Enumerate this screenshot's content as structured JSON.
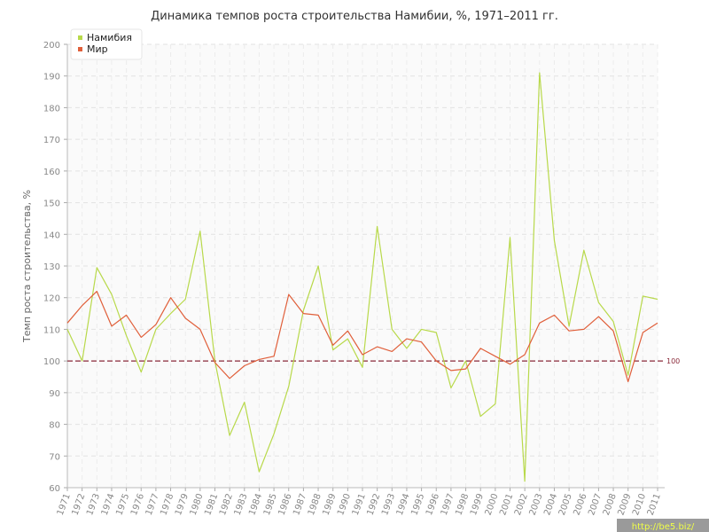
{
  "chart_data": {
    "type": "line",
    "title": "Динамика темпов роста строительства Намибии, %, 1971–2011 гг.",
    "xlabel": "",
    "ylabel": "Темп роста строительства, %",
    "ylim": [
      60,
      200
    ],
    "yticks": [
      60,
      70,
      80,
      90,
      100,
      110,
      120,
      130,
      140,
      150,
      160,
      170,
      180,
      190,
      200
    ],
    "x": [
      "1971",
      "1972",
      "1973",
      "1974",
      "1975",
      "1976",
      "1977",
      "1978",
      "1979",
      "1980",
      "1981",
      "1982",
      "1983",
      "1984",
      "1985",
      "1986",
      "1987",
      "1988",
      "1989",
      "1990",
      "1991",
      "1992",
      "1993",
      "1994",
      "1995",
      "1996",
      "1997",
      "1998",
      "1999",
      "2000",
      "2001",
      "2002",
      "2003",
      "2004",
      "2005",
      "2006",
      "2007",
      "2008",
      "2009",
      "2010",
      "2011"
    ],
    "series": [
      {
        "name": "Намибия",
        "color": "#b8d94a",
        "values": [
          110,
          100,
          129.5,
          121,
          108,
          96.5,
          110,
          115,
          119.5,
          141,
          100,
          76.5,
          87,
          65,
          77,
          92,
          116,
          130,
          103.5,
          107,
          98,
          142.5,
          110,
          104,
          110,
          109,
          91.5,
          100,
          82.5,
          86.5,
          139,
          62,
          191,
          138,
          111,
          135,
          118.5,
          112.5,
          95.5,
          120.5,
          119.5
        ]
      },
      {
        "name": "Мир",
        "color": "#e05f3a",
        "values": [
          112,
          117.5,
          122,
          111,
          114.5,
          107.5,
          111.5,
          120,
          113.5,
          110,
          99.5,
          94.5,
          98.5,
          100.5,
          101.5,
          121,
          115,
          114.5,
          105,
          109.5,
          102,
          104.5,
          103,
          107,
          106,
          100,
          97,
          97.5,
          104,
          101.5,
          99,
          102,
          112,
          114.5,
          109.5,
          110,
          114,
          109.5,
          93.5,
          109,
          112
        ]
      }
    ],
    "reference_line": {
      "value": 100,
      "label": "100",
      "color": "#8a2a3a"
    },
    "grid": true,
    "legend": "top-left"
  },
  "watermark": {
    "text": "http://be5.biz/",
    "bg": "#9a9a9a"
  }
}
